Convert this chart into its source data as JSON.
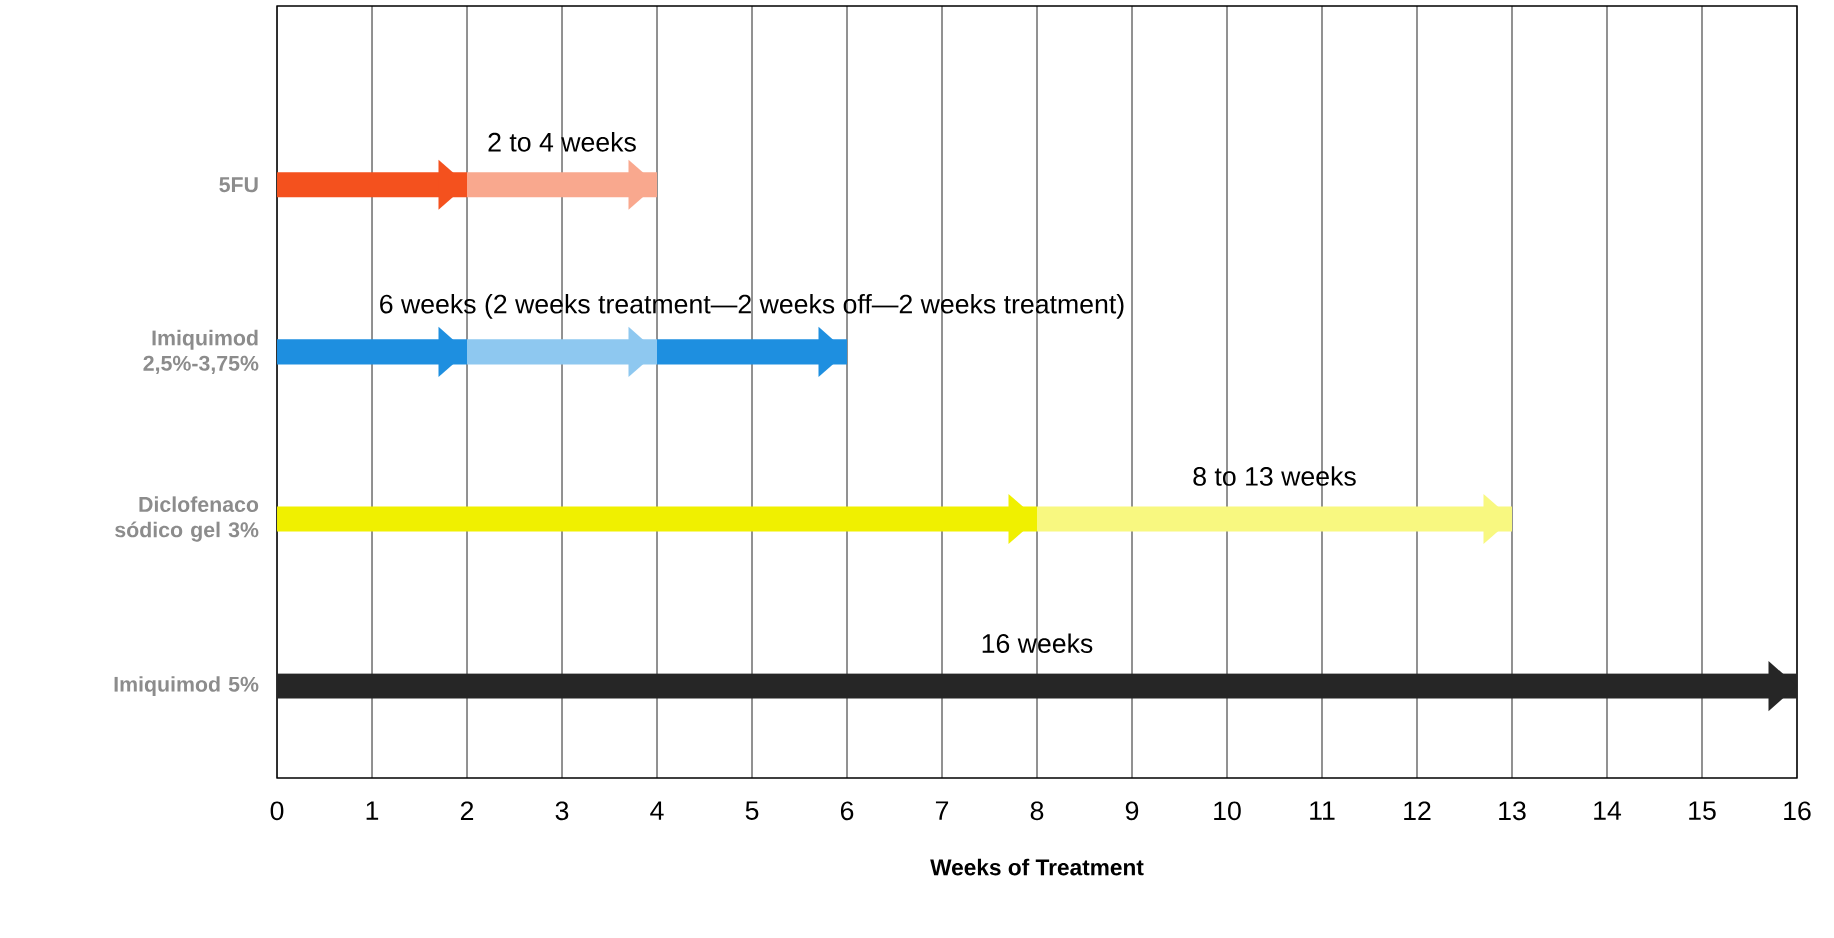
{
  "chart_data": {
    "type": "bar",
    "orientation": "horizontal",
    "stacked": true,
    "xlabel": "Weeks of Treatment",
    "categories": [
      "5FU",
      "Imiquimod 2,5%-3,75%",
      "Diclofenaco sódico gel 3%",
      "Imiquimod 5%"
    ],
    "series": [
      {
        "values": [
          2,
          2,
          8,
          16
        ],
        "colors": [
          "#f4511e",
          "#1e8fe0",
          "#f0f000",
          "#262626"
        ]
      },
      {
        "values": [
          2,
          2,
          5,
          null
        ],
        "colors": [
          "#f9a88e",
          "#8ec8f0",
          "#f8f880",
          "#262626"
        ]
      },
      {
        "values": [
          null,
          2,
          null,
          null
        ],
        "colors": [
          "#f4511e",
          "#1e8fe0",
          "#f0f000",
          "#262626"
        ]
      }
    ],
    "xlim": [
      0,
      16
    ],
    "xticks": [
      0,
      1,
      2,
      3,
      4,
      5,
      6,
      7,
      8,
      9,
      10,
      11,
      12,
      13,
      14,
      15,
      16
    ],
    "grid": "x",
    "annotations": [
      "2 to 4 weeks",
      "6 weeks (2 weeks treatment—2 weeks off—2 weeks treatment)",
      "8 to 13 weeks",
      "16 weeks"
    ]
  }
}
